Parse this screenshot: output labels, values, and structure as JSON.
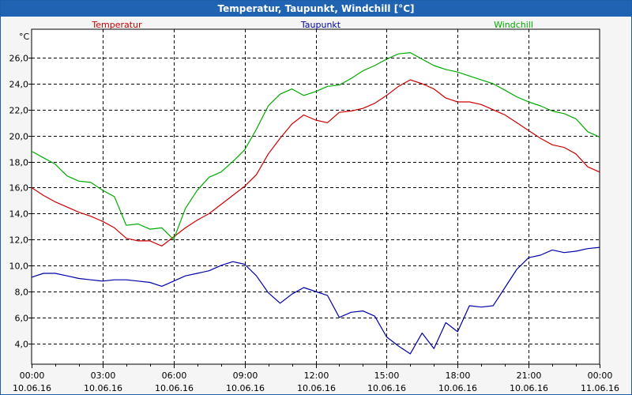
{
  "window": {
    "title": "Temperatur, Taupunkt, Windchill [°C]"
  },
  "chart_data": {
    "type": "line",
    "unit_label": "°C",
    "ylim": [
      2.4,
      28.2
    ],
    "y_ticks": [
      "4,0",
      "6,0",
      "8,0",
      "10,0",
      "12,0",
      "14,0",
      "16,0",
      "18,0",
      "20,0",
      "22,0",
      "24,0",
      "26,0"
    ],
    "y_tick_values": [
      4,
      6,
      8,
      10,
      12,
      14,
      16,
      18,
      20,
      22,
      24,
      26
    ],
    "x_ticks": [
      {
        "time": "00:00",
        "date": "10.06.16"
      },
      {
        "time": "03:00",
        "date": "10.06.16"
      },
      {
        "time": "06:00",
        "date": "10.06.16"
      },
      {
        "time": "09:00",
        "date": "10.06.16"
      },
      {
        "time": "12:00",
        "date": "10.06.16"
      },
      {
        "time": "15:00",
        "date": "10.06.16"
      },
      {
        "time": "18:00",
        "date": "10.06.16"
      },
      {
        "time": "21:00",
        "date": "10.06.16"
      },
      {
        "time": "00:00",
        "date": "11.06.16"
      }
    ],
    "x_hours": [
      0,
      0.5,
      1,
      1.5,
      2,
      2.5,
      3,
      3.5,
      4,
      4.5,
      5,
      5.5,
      6,
      6.5,
      7,
      7.5,
      8,
      8.5,
      9,
      9.5,
      10,
      10.5,
      11,
      11.5,
      12,
      12.5,
      13,
      13.5,
      14,
      14.5,
      15,
      15.5,
      16,
      16.5,
      17,
      17.5,
      18,
      18.5,
      19,
      19.5,
      20,
      20.5,
      21,
      21.5,
      22,
      22.5,
      23,
      23.5,
      24
    ],
    "grid": true,
    "legend": "top",
    "series": [
      {
        "name": "Temperatur",
        "color": "#cc0000",
        "values": [
          16.0,
          15.4,
          14.9,
          14.5,
          14.1,
          13.8,
          13.4,
          12.9,
          12.1,
          11.9,
          11.9,
          11.5,
          12.2,
          12.9,
          13.5,
          14.0,
          14.7,
          15.4,
          16.1,
          17.0,
          18.6,
          19.8,
          20.9,
          21.6,
          21.2,
          21.0,
          21.8,
          21.9,
          22.1,
          22.5,
          23.1,
          23.8,
          24.3,
          24.0,
          23.6,
          22.9,
          22.6,
          22.6,
          22.4,
          22.0,
          21.6,
          21.0,
          20.4,
          19.8,
          19.3,
          19.1,
          18.6,
          17.6,
          17.2
        ]
      },
      {
        "name": "Taupunkt",
        "color": "#0000aa",
        "values": [
          9.1,
          9.4,
          9.4,
          9.2,
          9.0,
          8.9,
          8.8,
          8.9,
          8.9,
          8.8,
          8.7,
          8.4,
          8.8,
          9.2,
          9.4,
          9.6,
          10.0,
          10.3,
          10.1,
          9.2,
          7.9,
          7.1,
          7.8,
          8.3,
          8.0,
          7.7,
          6.0,
          6.4,
          6.5,
          6.1,
          4.5,
          3.8,
          3.2,
          4.8,
          3.6,
          5.6,
          4.9,
          6.9,
          6.8,
          6.9,
          8.3,
          9.7,
          10.6,
          10.8,
          11.2,
          11.0,
          11.1,
          11.3,
          11.4
        ]
      },
      {
        "name": "Windchill",
        "color": "#00aa00",
        "values": [
          18.8,
          18.3,
          17.8,
          16.9,
          16.5,
          16.4,
          15.8,
          15.3,
          13.1,
          13.2,
          12.8,
          12.9,
          12.0,
          14.4,
          15.8,
          16.8,
          17.2,
          18.0,
          18.9,
          20.5,
          22.3,
          23.2,
          23.6,
          23.1,
          23.4,
          23.8,
          23.9,
          24.4,
          25.0,
          25.4,
          25.9,
          26.3,
          26.4,
          25.9,
          25.4,
          25.1,
          24.9,
          24.6,
          24.3,
          24.0,
          23.5,
          23.0,
          22.6,
          22.3,
          21.9,
          21.7,
          21.3,
          20.3,
          19.9
        ]
      }
    ]
  }
}
